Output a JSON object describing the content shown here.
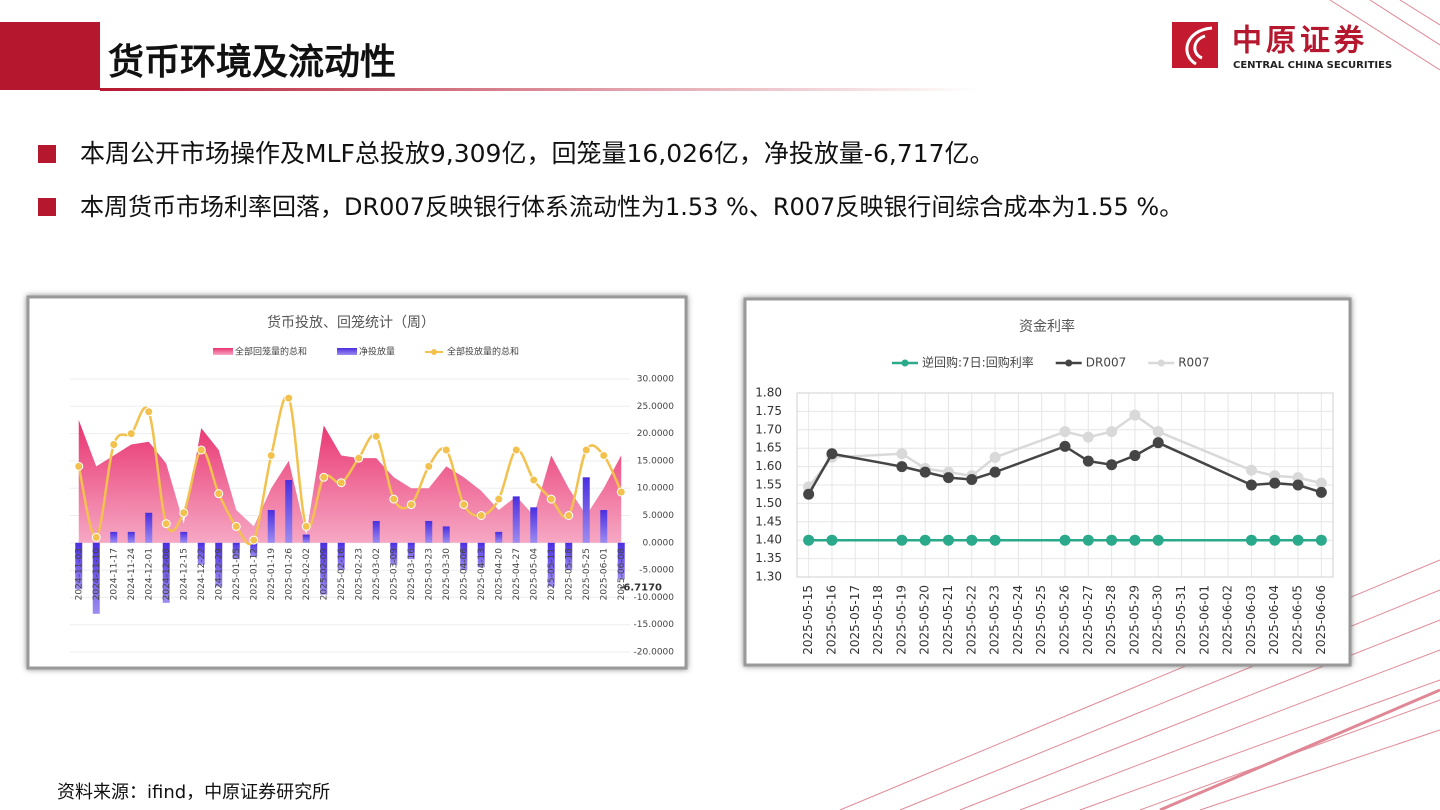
{
  "header": {
    "title": "货币环境及流动性",
    "logo": {
      "name": "中原证券",
      "english": "CENTRAL CHINA SECURITIES"
    }
  },
  "bullets": [
    "本周公开市场操作及MLF总投放9,309亿，回笼量16,026亿，净投放量-6,717亿。",
    "本周货币市场利率回落，DR007反映银行体系流动性为1.53 %、R007反映银行间综合成本为1.55 %。"
  ],
  "chart_data": [
    {
      "type": "combo",
      "title": "货币投放、回笼统计（周）",
      "categories": [
        "2024-11-03",
        "2024-11-10",
        "2024-11-17",
        "2024-11-24",
        "2024-12-01",
        "2024-12-08",
        "2024-12-15",
        "2024-12-22",
        "2024-12-29",
        "2025-01-05",
        "2025-01-12",
        "2025-01-19",
        "2025-01-26",
        "2025-02-02",
        "2025-02-09",
        "2025-02-16",
        "2025-02-23",
        "2025-03-02",
        "2025-03-09",
        "2025-03-16",
        "2025-03-23",
        "2025-03-30",
        "2025-04-06",
        "2025-04-13",
        "2025-04-20",
        "2025-04-27",
        "2025-05-04",
        "2025-05-11",
        "2025-05-18",
        "2025-05-25",
        "2025-06-01",
        "2025-06-08"
      ],
      "series": [
        {
          "name": "全部回笼量的总和",
          "kind": "area",
          "color": "#e8336f",
          "values": [
            22.5,
            14,
            16,
            18,
            18.5,
            14.5,
            3.5,
            21,
            17,
            6,
            3,
            10,
            15,
            1.5,
            21.5,
            16,
            15.5,
            15.5,
            12,
            10,
            10,
            14,
            12,
            9.5,
            6,
            8.5,
            5,
            16,
            10,
            5,
            10,
            16.026
          ]
        },
        {
          "name": "净投放量",
          "kind": "bar",
          "color": "#5a3de0",
          "values": [
            -8.5,
            -13,
            2,
            2,
            5.5,
            -11,
            2,
            -4,
            -8,
            -3,
            -2.5,
            6,
            11.5,
            1.5,
            -9.5,
            -5,
            0,
            4,
            -4,
            -3,
            4,
            3,
            -5,
            -4.5,
            2,
            8.5,
            6.5,
            -8,
            -5,
            12,
            6,
            -6.717
          ],
          "value_labels": [
            null,
            null,
            null,
            null,
            null,
            null,
            null,
            null,
            null,
            null,
            null,
            null,
            null,
            null,
            null,
            null,
            null,
            null,
            null,
            null,
            null,
            null,
            null,
            null,
            null,
            null,
            null,
            null,
            null,
            null,
            null,
            "-6.7170"
          ]
        },
        {
          "name": "全部投放量的总和",
          "kind": "line",
          "color": "#f2c14e",
          "values": [
            14,
            1,
            18,
            20,
            24,
            3.5,
            5.5,
            17,
            9,
            3,
            0.5,
            16,
            26.5,
            3,
            12,
            11,
            15.5,
            19.5,
            8,
            7,
            14,
            17,
            7,
            5,
            8,
            17,
            11.5,
            8,
            5,
            17,
            16,
            9.309
          ]
        }
      ],
      "ylim": [
        -20,
        30
      ],
      "yticks": [
        {
          "value": 30,
          "label": "30.0000"
        },
        {
          "value": 25,
          "label": "25.0000"
        },
        {
          "value": 20,
          "label": "20.0000"
        },
        {
          "value": 15,
          "label": "15.0000"
        },
        {
          "value": 10,
          "label": "10.0000"
        },
        {
          "value": 5,
          "label": "5.0000"
        },
        {
          "value": 0,
          "label": "0.0000"
        },
        {
          "value": -5,
          "label": "-5.0000"
        },
        {
          "value": -10,
          "label": "-10.0000"
        },
        {
          "value": -15,
          "label": "-15.0000"
        },
        {
          "value": -20,
          "label": "-20.0000"
        }
      ],
      "grid": true,
      "legend": "top"
    },
    {
      "type": "line",
      "title": "资金利率",
      "xticks": [
        "2025-05-15",
        "2025-05-16",
        "2025-05-17",
        "2025-05-18",
        "2025-05-19",
        "2025-05-20",
        "2025-05-21",
        "2025-05-22",
        "2025-05-23",
        "2025-05-24",
        "2025-05-25",
        "2025-05-26",
        "2025-05-27",
        "2025-05-28",
        "2025-05-29",
        "2025-05-30",
        "2025-05-31",
        "2025-06-01",
        "2025-06-02",
        "2025-06-03",
        "2025-06-04",
        "2025-06-05",
        "2025-06-06"
      ],
      "x": [
        "2025-05-15",
        "2025-05-16",
        "2025-05-19",
        "2025-05-20",
        "2025-05-21",
        "2025-05-22",
        "2025-05-23",
        "2025-05-26",
        "2025-05-27",
        "2025-05-28",
        "2025-05-29",
        "2025-05-30",
        "2025-06-03",
        "2025-06-04",
        "2025-06-05",
        "2025-06-06"
      ],
      "series": [
        {
          "name": "逆回购:7日:回购利率",
          "color": "#2aa98b",
          "values": [
            1.4,
            1.4,
            1.4,
            1.4,
            1.4,
            1.4,
            1.4,
            1.4,
            1.4,
            1.4,
            1.4,
            1.4,
            1.4,
            1.4,
            1.4,
            1.4
          ]
        },
        {
          "name": "DR007",
          "color": "#454545",
          "values": [
            1.525,
            1.635,
            1.6,
            1.585,
            1.57,
            1.565,
            1.585,
            1.655,
            1.615,
            1.605,
            1.63,
            1.665,
            1.55,
            1.555,
            1.55,
            1.53
          ]
        },
        {
          "name": "R007",
          "color": "#d9d9d9",
          "values": [
            1.545,
            1.625,
            1.635,
            1.595,
            1.585,
            1.575,
            1.625,
            1.695,
            1.68,
            1.695,
            1.74,
            1.695,
            1.59,
            1.575,
            1.57,
            1.555
          ]
        }
      ],
      "ylim": [
        1.3,
        1.8
      ],
      "yticks": [
        {
          "value": 1.3,
          "label": "1.30"
        },
        1.35,
        {
          "value": 1.4,
          "label": "1.40"
        },
        1.45,
        {
          "value": 1.5,
          "label": "1.50"
        },
        1.55,
        {
          "value": 1.6,
          "label": "1.60"
        },
        1.65,
        {
          "value": 1.7,
          "label": "1.70"
        },
        1.75,
        {
          "value": 1.8,
          "label": "1.80"
        }
      ],
      "grid": true,
      "legend": "top"
    }
  ],
  "source": "资料来源：ifind，中原证券研究所"
}
